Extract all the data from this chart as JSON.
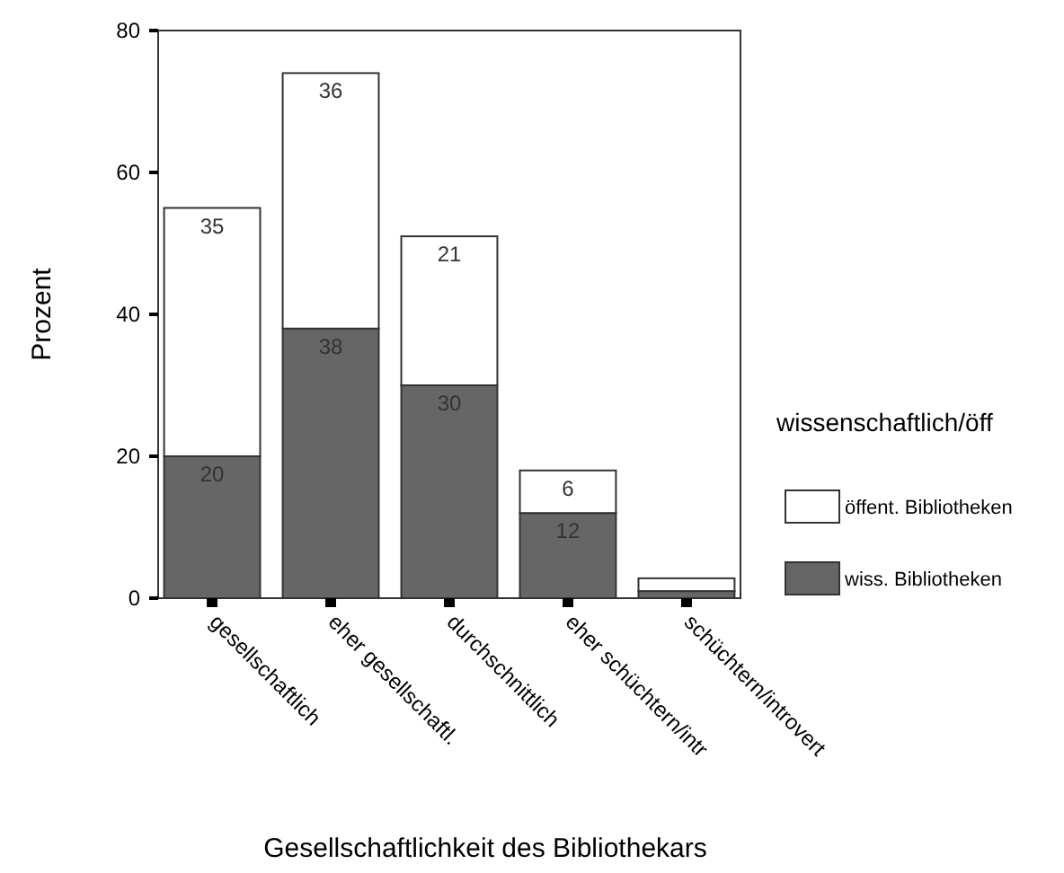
{
  "chart_data": {
    "type": "bar",
    "stacked": true,
    "xlabel": "Gesellschaftlichkeit des Bibliothekars",
    "ylabel": "Prozent",
    "legend_title": "wissenschaftlich/öff",
    "legend": "right",
    "categories": [
      "gesellschaftlich",
      "eher gesellschaftl.",
      "durchschnittlich",
      "eher schüchtern/intr",
      "schüchtern/introvert"
    ],
    "ylim": [
      0,
      80
    ],
    "yticks": [
      0,
      20,
      40,
      60,
      80
    ],
    "grid": false,
    "series": [
      {
        "name": "wiss. Bibliotheken",
        "color": "#666666",
        "values": [
          20,
          38,
          30,
          12,
          1
        ],
        "value_labels": [
          "20",
          "38",
          "30",
          "12",
          null
        ]
      },
      {
        "name": "öffent. Bibliotheken",
        "color": "#ffffff",
        "values": [
          35,
          36,
          21,
          6,
          1.8
        ],
        "value_labels": [
          "35",
          "36",
          "21",
          "6",
          null
        ]
      }
    ]
  }
}
